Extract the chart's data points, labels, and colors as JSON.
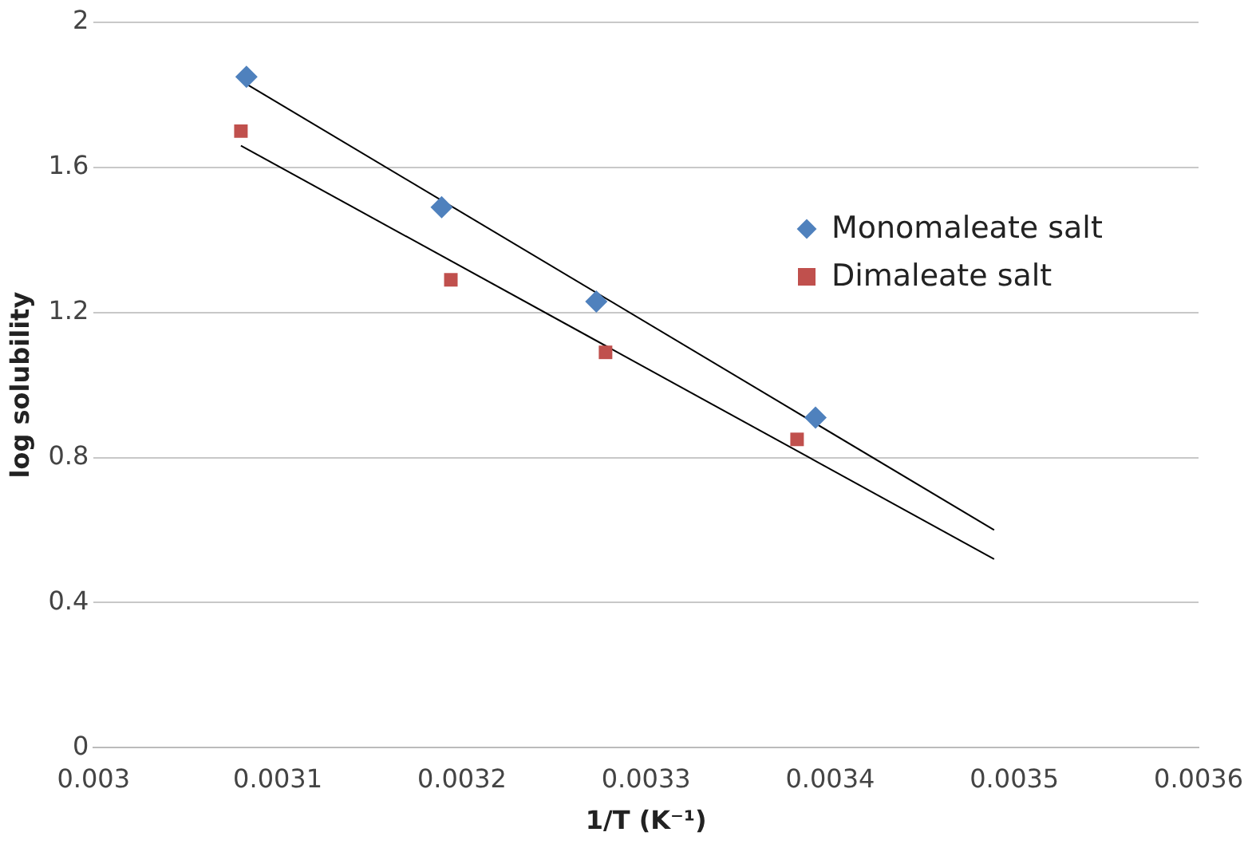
{
  "chart_data": {
    "type": "scatter",
    "xlabel": "1/T (K⁻¹)",
    "ylabel": "log solubility",
    "xlim": [
      0.003,
      0.0036
    ],
    "xticks": [
      0.003,
      0.0031,
      0.0032,
      0.0033,
      0.0034,
      0.0035,
      0.0036
    ],
    "ylim": [
      0,
      2
    ],
    "yticks": [
      0,
      0.4,
      0.8,
      1.2,
      1.6,
      2
    ],
    "grid": "y",
    "legend": "right",
    "series": [
      {
        "name": "Monomaleate salt",
        "color": "#4f81bd",
        "marker": "diamond",
        "x": [
          0.003083,
          0.003189,
          0.003273,
          0.003392
        ],
        "values": [
          1.85,
          1.49,
          1.23,
          0.91
        ]
      },
      {
        "name": "Dimaleate salt",
        "color": "#c0504d",
        "marker": "square",
        "x": [
          0.00308,
          0.003194,
          0.003278,
          0.003382
        ],
        "values": [
          1.7,
          1.29,
          1.09,
          0.85
        ]
      },
      {
        "type": "line",
        "color": "#000000",
        "marker": "none",
        "x": [
          0.003083,
          0.003489
        ],
        "values": [
          1.83,
          0.6
        ]
      },
      {
        "type": "line",
        "color": "#000000",
        "marker": "none",
        "x": [
          0.00308,
          0.003489
        ],
        "values": [
          1.66,
          0.52
        ]
      }
    ]
  }
}
